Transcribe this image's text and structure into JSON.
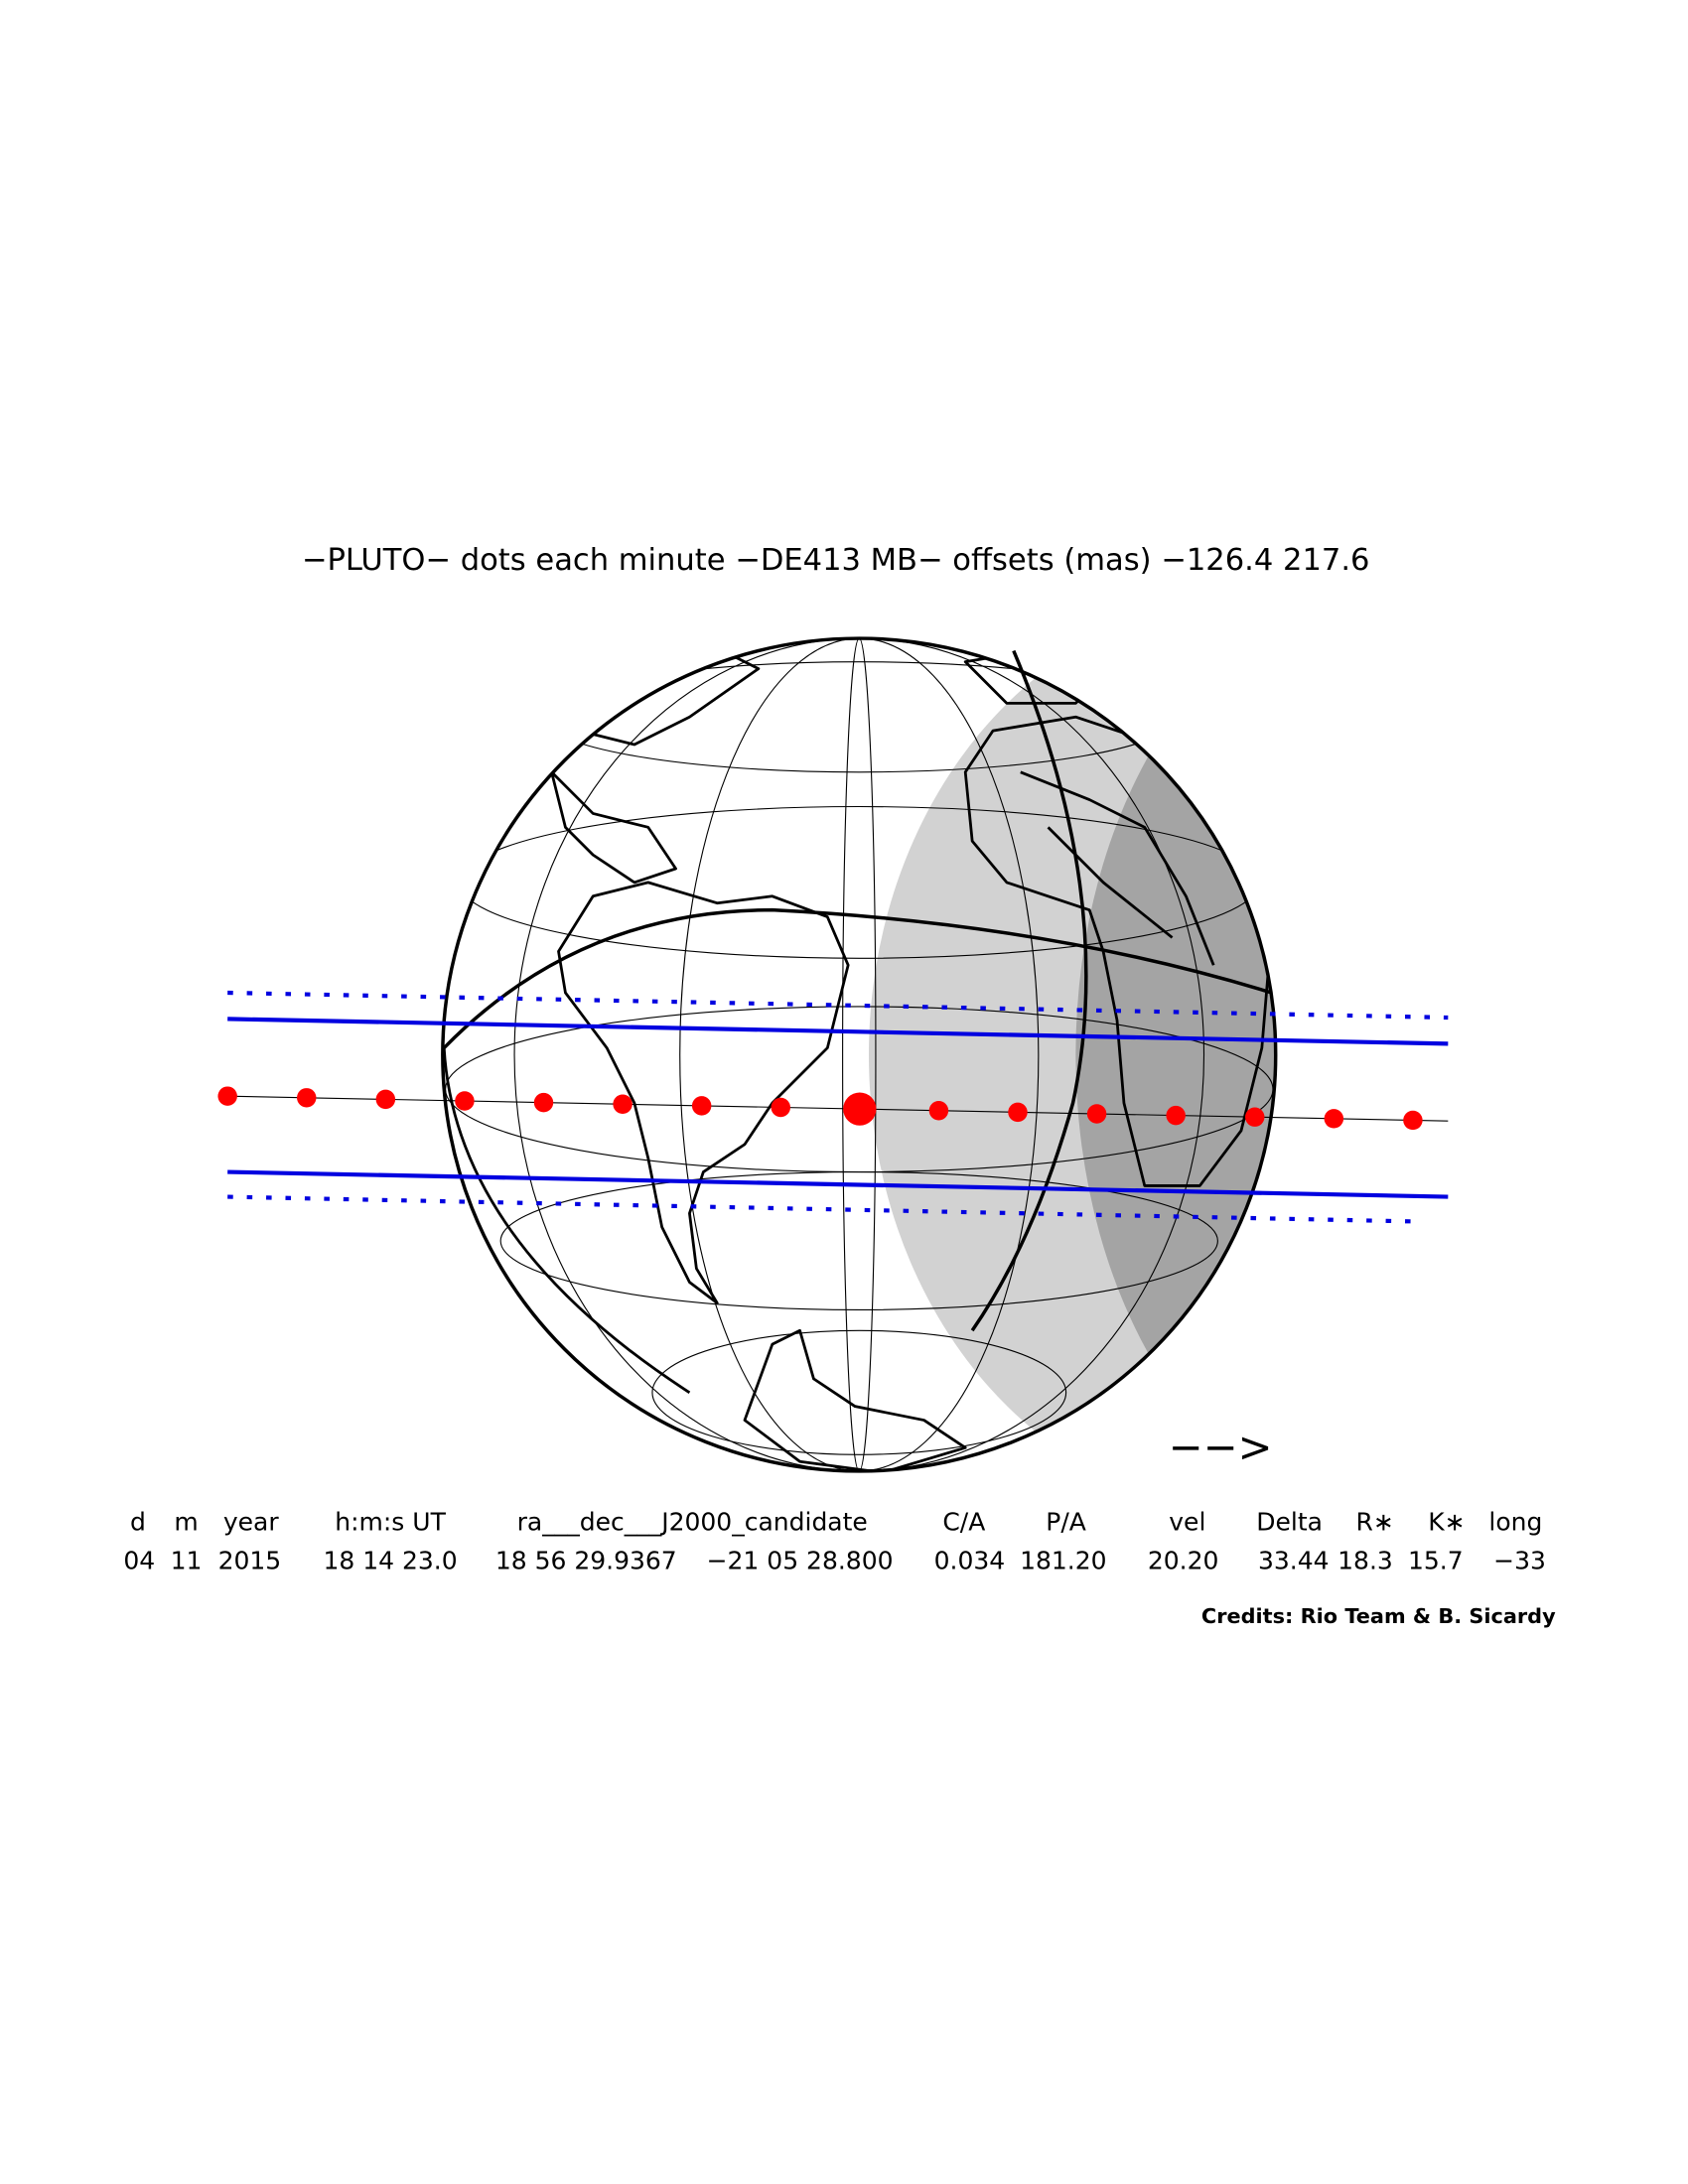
{
  "title": "−PLUTO− dots each minute −DE413 MB− offsets (mas) −126.4   217.6",
  "direction_arrow": "−−>",
  "table": {
    "headers": [
      "d",
      "m",
      "year",
      "h:m:s UT",
      "ra___dec___J2000_candidate",
      "C/A",
      "P/A",
      "vel",
      "Delta",
      "R∗",
      "K∗",
      "long"
    ],
    "values": [
      "04",
      "11",
      "2015",
      "18 14 23.0",
      "18 56 29.9367",
      "−21 05 28.800",
      "0.034",
      "181.20",
      "20.20",
      "33.44",
      "18.3",
      "15.7",
      "−33"
    ]
  },
  "credits": "Credits: Rio Team & B. Sicardy"
}
